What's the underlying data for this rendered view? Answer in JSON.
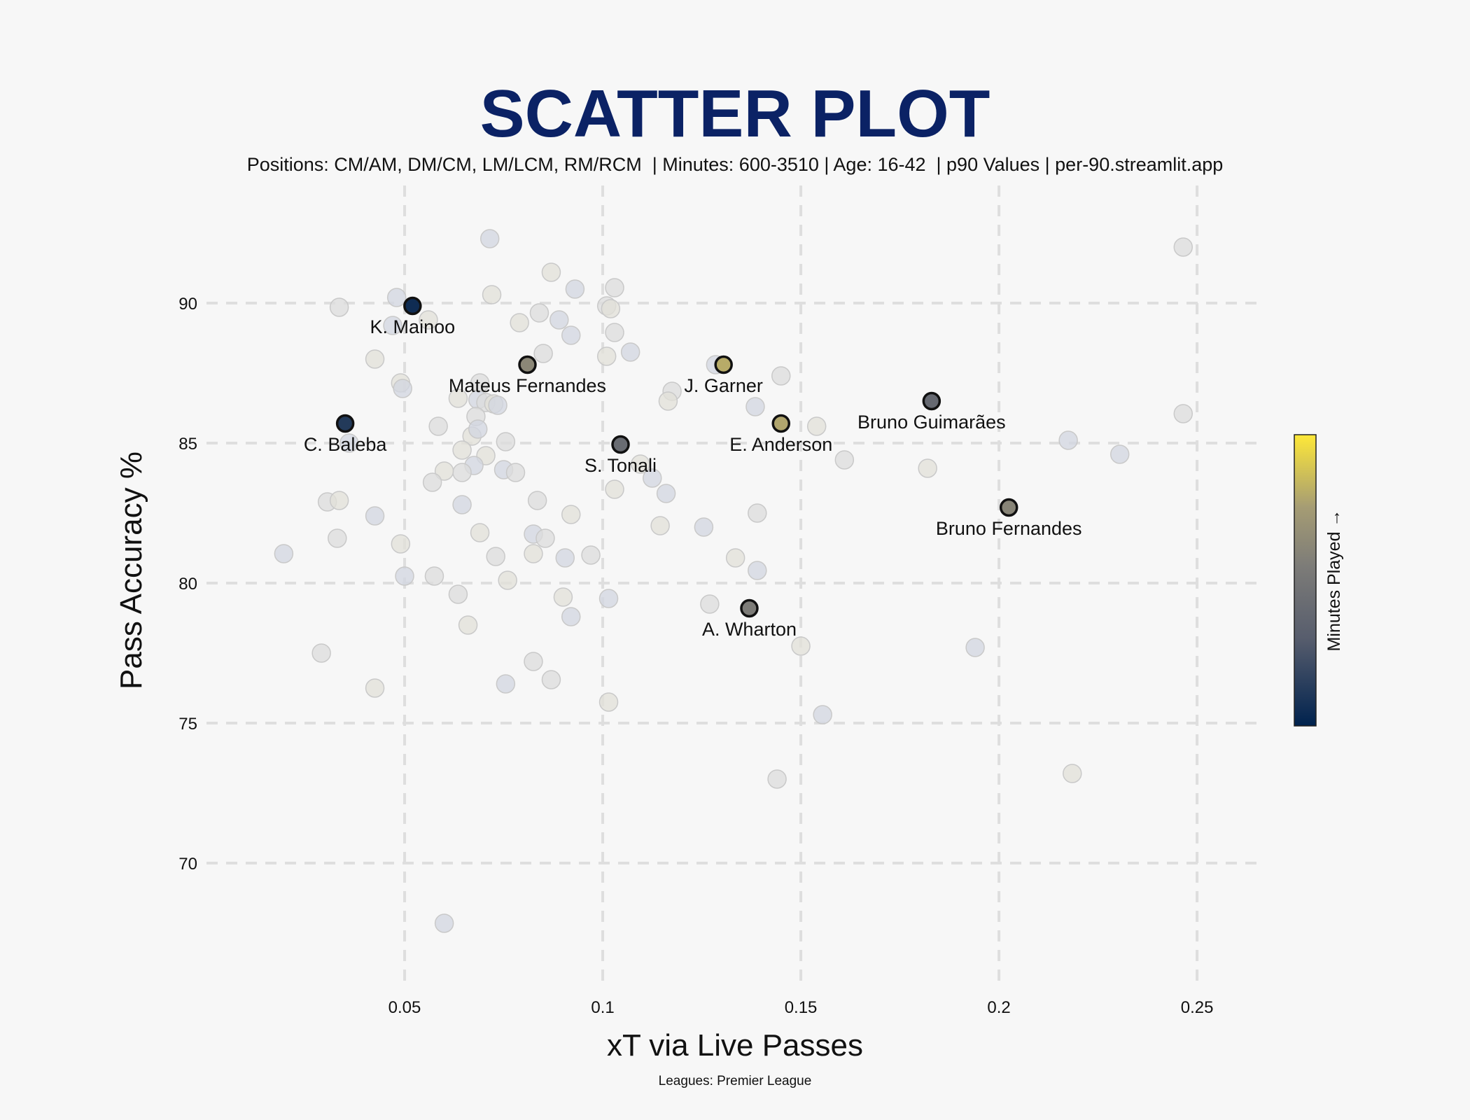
{
  "chart_data": {
    "type": "scatter",
    "title": "SCATTER PLOT",
    "subtitle": "Positions: CM/AM, DM/CM, LM/LCM, RM/RCM  | Minutes: 600-3510 | Age: 16-42  | p90 Values | per-90.streamlit.app",
    "xlabel": "xT via Live Passes",
    "ylabel": "Pass Accuracy %",
    "footnote": "Leagues: Premier League",
    "colorbar_label": "Minutes Played →",
    "xlim": [
      0.0,
      0.265
    ],
    "ylim": [
      65.7,
      94.2
    ],
    "xticks": [
      "0.05",
      "0.1",
      "0.15",
      "0.2",
      "0.25"
    ],
    "xtick_values": [
      0.05,
      0.1,
      0.15,
      0.2,
      0.25
    ],
    "yticks": [
      "70",
      "75",
      "80",
      "85",
      "90"
    ],
    "ytick_values": [
      70,
      75,
      80,
      85,
      90
    ],
    "grid": true,
    "colormap": [
      "#00224e",
      "#575d6d",
      "#7d7c78",
      "#a59c74",
      "#fee838"
    ],
    "highlighted": [
      {
        "label": "K. Mainoo",
        "x": 0.052,
        "y": 89.9,
        "minutes": 0.05
      },
      {
        "label": "C. Baleba",
        "x": 0.035,
        "y": 85.7,
        "minutes": 0.12
      },
      {
        "label": "Mateus Fernandes",
        "x": 0.081,
        "y": 87.8,
        "minutes": 0.62
      },
      {
        "label": "J. Garner",
        "x": 0.1305,
        "y": 87.8,
        "minutes": 0.8
      },
      {
        "label": "E. Anderson",
        "x": 0.145,
        "y": 85.7,
        "minutes": 0.78
      },
      {
        "label": "S. Tonali",
        "x": 0.1045,
        "y": 84.95,
        "minutes": 0.42
      },
      {
        "label": "Bruno Guimarães",
        "x": 0.183,
        "y": 86.5,
        "minutes": 0.4
      },
      {
        "label": "Bruno Fernandes",
        "x": 0.2025,
        "y": 82.7,
        "minutes": 0.6
      },
      {
        "label": "A. Wharton",
        "x": 0.137,
        "y": 79.1,
        "minutes": 0.55
      }
    ],
    "background_points": [
      [
        0.0715,
        92.3
      ],
      [
        0.2465,
        92.0
      ],
      [
        0.087,
        91.1
      ],
      [
        0.093,
        90.5
      ],
      [
        0.103,
        90.55
      ],
      [
        0.072,
        90.3
      ],
      [
        0.048,
        90.2
      ],
      [
        0.0335,
        89.85
      ],
      [
        0.056,
        89.4
      ],
      [
        0.047,
        89.2
      ],
      [
        0.084,
        89.65
      ],
      [
        0.079,
        89.3
      ],
      [
        0.089,
        89.4
      ],
      [
        0.101,
        89.9
      ],
      [
        0.102,
        89.8
      ],
      [
        0.092,
        88.85
      ],
      [
        0.103,
        88.95
      ],
      [
        0.101,
        88.1
      ],
      [
        0.107,
        88.25
      ],
      [
        0.085,
        88.2
      ],
      [
        0.0425,
        88.0
      ],
      [
        0.1285,
        87.8
      ],
      [
        0.145,
        87.4
      ],
      [
        0.049,
        87.15
      ],
      [
        0.0495,
        86.95
      ],
      [
        0.069,
        87.15
      ],
      [
        0.0635,
        86.6
      ],
      [
        0.0685,
        86.55
      ],
      [
        0.0705,
        86.45
      ],
      [
        0.0725,
        86.4
      ],
      [
        0.0735,
        86.35
      ],
      [
        0.1175,
        86.85
      ],
      [
        0.1165,
        86.5
      ],
      [
        0.1385,
        86.3
      ],
      [
        0.068,
        85.95
      ],
      [
        0.067,
        85.25
      ],
      [
        0.0685,
        85.5
      ],
      [
        0.0585,
        85.6
      ],
      [
        0.154,
        85.6
      ],
      [
        0.036,
        85.0
      ],
      [
        0.0755,
        85.05
      ],
      [
        0.0645,
        84.75
      ],
      [
        0.2175,
        85.1
      ],
      [
        0.2465,
        86.05
      ],
      [
        0.0705,
        84.55
      ],
      [
        0.0675,
        84.2
      ],
      [
        0.0645,
        83.95
      ],
      [
        0.06,
        84.0
      ],
      [
        0.075,
        84.05
      ],
      [
        0.078,
        83.95
      ],
      [
        0.1095,
        84.25
      ],
      [
        0.1125,
        83.75
      ],
      [
        0.161,
        84.4
      ],
      [
        0.182,
        84.1
      ],
      [
        0.2305,
        84.6
      ],
      [
        0.057,
        83.6
      ],
      [
        0.103,
        83.35
      ],
      [
        0.116,
        83.2
      ],
      [
        0.0305,
        82.9
      ],
      [
        0.0335,
        82.95
      ],
      [
        0.0645,
        82.8
      ],
      [
        0.0835,
        82.95
      ],
      [
        0.092,
        82.45
      ],
      [
        0.0425,
        82.4
      ],
      [
        0.139,
        82.5
      ],
      [
        0.069,
        81.8
      ],
      [
        0.0825,
        81.75
      ],
      [
        0.0855,
        81.6
      ],
      [
        0.1145,
        82.05
      ],
      [
        0.1255,
        82.0
      ],
      [
        0.033,
        81.6
      ],
      [
        0.049,
        81.4
      ],
      [
        0.0195,
        81.05
      ],
      [
        0.073,
        80.95
      ],
      [
        0.0825,
        81.05
      ],
      [
        0.0905,
        80.9
      ],
      [
        0.097,
        81.0
      ],
      [
        0.1335,
        80.9
      ],
      [
        0.05,
        80.25
      ],
      [
        0.0575,
        80.25
      ],
      [
        0.076,
        80.1
      ],
      [
        0.139,
        80.45
      ],
      [
        0.0635,
        79.6
      ],
      [
        0.09,
        79.5
      ],
      [
        0.1015,
        79.45
      ],
      [
        0.127,
        79.25
      ],
      [
        0.066,
        78.5
      ],
      [
        0.092,
        78.8
      ],
      [
        0.029,
        77.5
      ],
      [
        0.15,
        77.75
      ],
      [
        0.194,
        77.7
      ],
      [
        0.0825,
        77.2
      ],
      [
        0.0425,
        76.25
      ],
      [
        0.0755,
        76.4
      ],
      [
        0.087,
        76.55
      ],
      [
        0.1015,
        75.75
      ],
      [
        0.1555,
        75.3
      ],
      [
        0.144,
        73.0
      ],
      [
        0.2185,
        73.2
      ],
      [
        0.06,
        67.85
      ]
    ]
  }
}
